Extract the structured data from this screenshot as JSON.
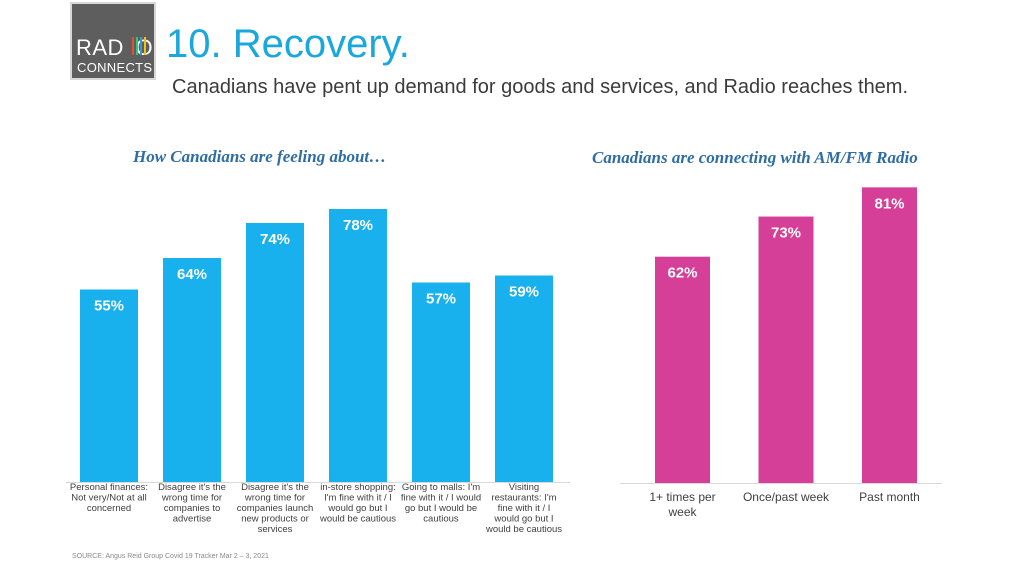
{
  "logo": {
    "word": "RAD O",
    "sub": "CONNECTS",
    "bar_colors": [
      "#e74c3c",
      "#2ecc71",
      "#3498db",
      "#f1c40f"
    ]
  },
  "title": "10. Recovery.",
  "subtitle": "Canadians have pent up demand for goods and services, and Radio reaches them.",
  "source": "SOURCE: Angus Reid Group Covid 19 Tracker Mar 2 – 3, 2021",
  "chart_data": [
    {
      "type": "bar",
      "title": "How Canadians are feeling about…",
      "categories": [
        "Personal finances: Not very/Not at all concerned",
        "Disagree it's the wrong time for companies to advertise",
        "Disagree it's the wrong time for companies launch new products or services",
        "in-store shopping: I'm fine with it / I would go but I would be cautious",
        "Going to malls: I'm fine with it / I would go but I would be cautious",
        "Visiting restaurants: I'm fine with it / I would go but I would be cautious"
      ],
      "category_lines": [
        [
          "Personal finances:",
          "Not very/Not at all",
          "concerned"
        ],
        [
          "Disagree it's the",
          "wrong time for",
          "companies to",
          "advertise"
        ],
        [
          "Disagree it's the",
          "wrong time for",
          "companies launch",
          "new products or",
          "services"
        ],
        [
          "in-store shopping:",
          "I'm fine with it / I",
          "would go but I",
          "would be cautious"
        ],
        [
          "Going to malls: I'm",
          "fine with it / I would",
          "go but I would be",
          "cautious"
        ],
        [
          "Visiting",
          "restaurants: I'm",
          "fine with it / I",
          "would go but I",
          "would be cautious"
        ]
      ],
      "values": [
        55,
        64,
        74,
        78,
        57,
        59
      ],
      "labels": [
        "55%",
        "64%",
        "74%",
        "78%",
        "57%",
        "59%"
      ],
      "color": "#19b0ee",
      "ylim": [
        0,
        100
      ],
      "grid": false
    },
    {
      "type": "bar",
      "title": "Canadians are connecting with AM/FM Radio",
      "categories": [
        "1+ times per week",
        "Once/past week",
        "Past month"
      ],
      "category_lines": [
        [
          "1+ times per",
          "week"
        ],
        [
          "Once/past week"
        ],
        [
          "Past month"
        ]
      ],
      "values": [
        62,
        73,
        81
      ],
      "labels": [
        "62%",
        "73%",
        "81%"
      ],
      "color": "#d63f98",
      "ylim": [
        0,
        100
      ],
      "grid": false
    }
  ]
}
